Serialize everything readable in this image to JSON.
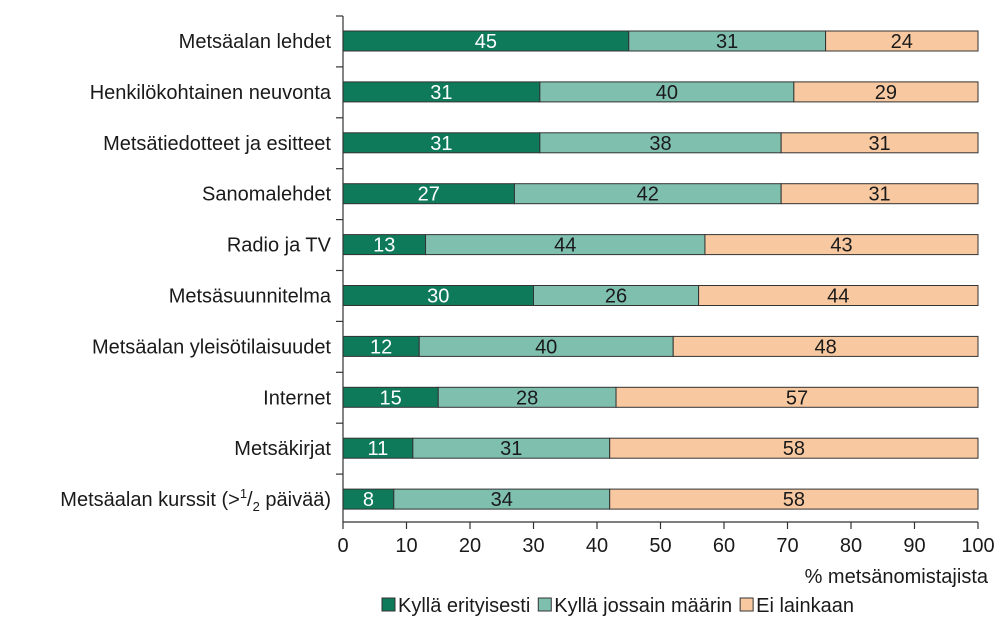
{
  "chart_data": {
    "type": "bar",
    "orientation": "horizontal",
    "stacked": true,
    "categories": [
      "Metsäalan lehdet",
      "Henkilökohtainen neuvonta",
      "Metsätiedotteet ja esitteet",
      "Sanomalehdet",
      "Radio ja TV",
      "Metsäsuunnitelma",
      "Metsäalan yleisötilaisuudet",
      "Internet",
      "Metsäkirjat",
      "Metsäalan kurssit (>1/2 päivää)"
    ],
    "series": [
      {
        "name": "Kyllä erityisesti",
        "color": "#0e7a5a",
        "label_color": "#ffffff",
        "values": [
          45,
          31,
          31,
          27,
          13,
          30,
          12,
          15,
          11,
          8
        ]
      },
      {
        "name": "Kyllä jossain määrin",
        "color": "#7fbfae",
        "label_color": "#1a1a1a",
        "values": [
          31,
          40,
          38,
          42,
          44,
          26,
          40,
          28,
          31,
          34
        ]
      },
      {
        "name": "Ei lainkaan",
        "color": "#f8c9a0",
        "label_color": "#1a1a1a",
        "values": [
          24,
          29,
          31,
          31,
          43,
          44,
          48,
          57,
          58,
          58
        ]
      }
    ],
    "xlim": [
      0,
      100
    ],
    "xticks": [
      "0",
      "10",
      "20",
      "30",
      "40",
      "50",
      "60",
      "70",
      "80",
      "90",
      "100"
    ],
    "xlabel": "% metsänomistajista",
    "ylabel": "",
    "title": "",
    "grid": false,
    "legend_position": "bottom"
  }
}
